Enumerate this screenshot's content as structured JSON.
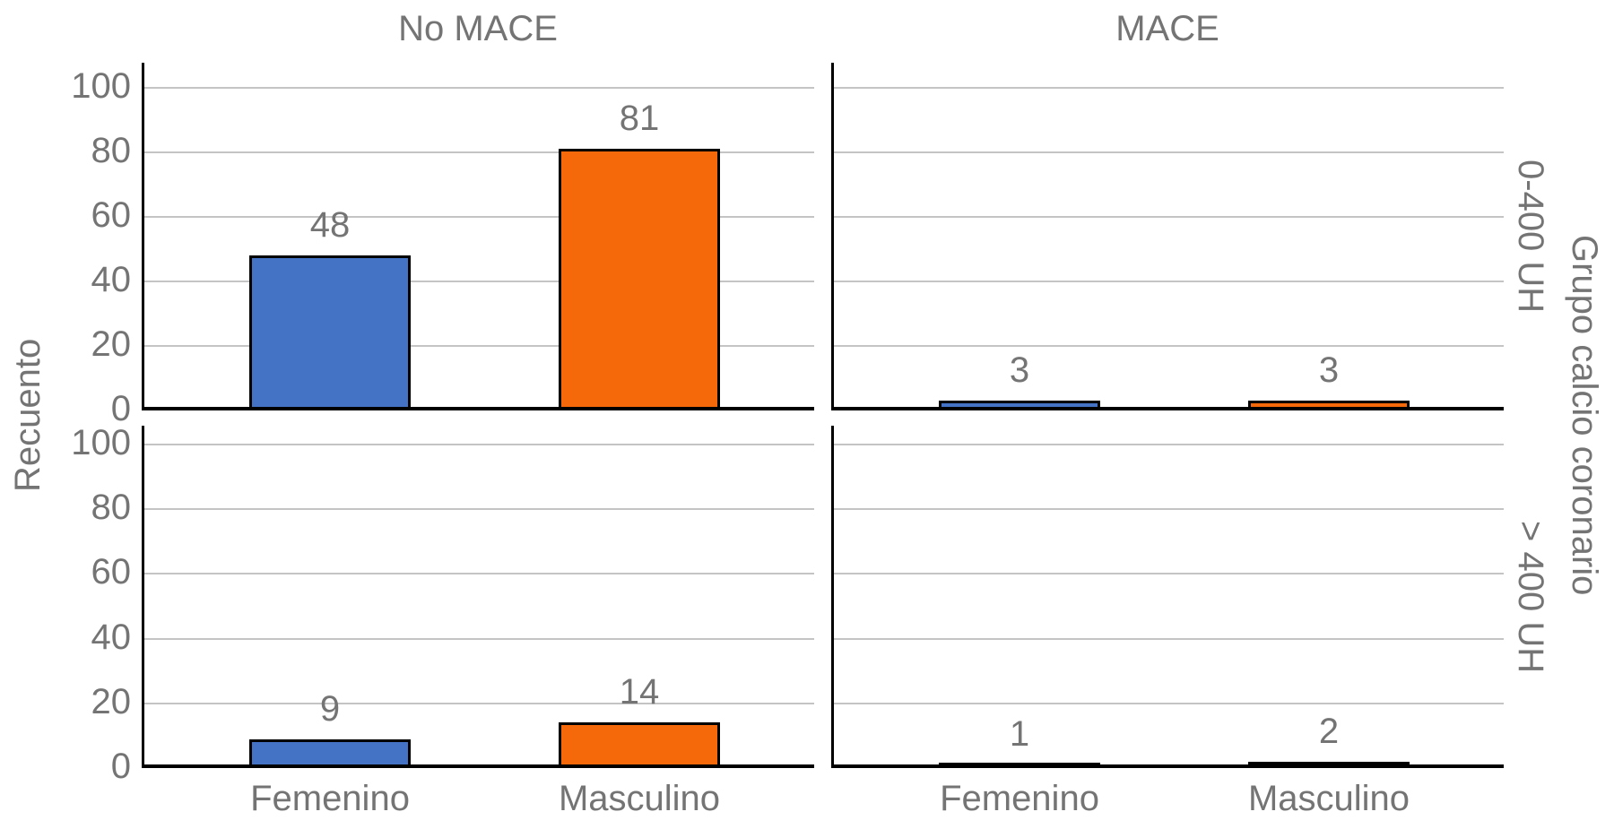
{
  "chart_data": {
    "type": "bar",
    "facet_layout": "2x2 grid (columns = MACE outcome, rows = coronary calcium group)",
    "col_titles": [
      "No MACE",
      "MACE"
    ],
    "row_labels": [
      "0-400 UH",
      "> 400 UH"
    ],
    "right_outer_label": "Grupo calcio coronario",
    "ylabel": "Recuento",
    "categories": [
      "Femenino",
      "Masculino"
    ],
    "series_colors": {
      "Femenino": "#4472c4",
      "Masculino": "#f5690b"
    },
    "ylim": [
      0,
      100
    ],
    "yticks": [
      0,
      20,
      40,
      60,
      80,
      100
    ],
    "grid": true,
    "legend": "none",
    "panels": [
      {
        "row": "0-400 UH",
        "col": "No MACE",
        "values": [
          48,
          81
        ]
      },
      {
        "row": "0-400 UH",
        "col": "MACE",
        "values": [
          3,
          3
        ]
      },
      {
        "row": "> 400 UH",
        "col": "No MACE",
        "values": [
          9,
          14
        ]
      },
      {
        "row": "> 400 UH",
        "col": "MACE",
        "values": [
          1,
          2
        ]
      }
    ],
    "colors": {
      "text": "#747474",
      "gridline": "#c4c4c4",
      "axis": "#000000",
      "background": "#ffffff"
    }
  }
}
